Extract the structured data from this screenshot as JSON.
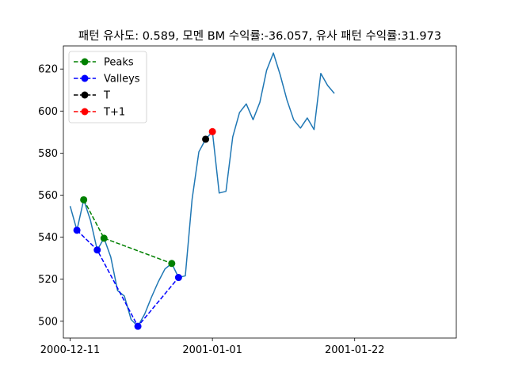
{
  "chart_data": {
    "type": "line",
    "title": "패턴 유사도: 0.589, 모멘 BM 수익률:-36.057, 유사 패턴 수익률:31.973",
    "xlabel": "",
    "ylabel": "",
    "xlim": [
      "2000-12-10",
      "2001-02-06"
    ],
    "ylim": [
      492,
      631
    ],
    "x_ticks": [
      "2000-12-11",
      "2001-01-01",
      "2001-01-22"
    ],
    "y_ticks": [
      500,
      520,
      540,
      560,
      580,
      600,
      620
    ],
    "legend_position": "top-left",
    "price": {
      "color": "#1f77b4",
      "points": [
        [
          "2000-12-11",
          554.8
        ],
        [
          "2000-12-12",
          543.3
        ],
        [
          "2000-12-13",
          557.8
        ],
        [
          "2000-12-14",
          548.0
        ],
        [
          "2000-12-15",
          533.9
        ],
        [
          "2000-12-16",
          539.5
        ],
        [
          "2000-12-17",
          530.5
        ],
        [
          "2000-12-18",
          514.6
        ],
        [
          "2000-12-19",
          512.0
        ],
        [
          "2000-12-20",
          500.8
        ],
        [
          "2000-12-21",
          497.6
        ],
        [
          "2000-12-22",
          503.4
        ],
        [
          "2000-12-23",
          511.4
        ],
        [
          "2000-12-24",
          518.7
        ],
        [
          "2000-12-25",
          524.9
        ],
        [
          "2000-12-26",
          527.5
        ],
        [
          "2000-12-27",
          520.8
        ],
        [
          "2000-12-28",
          521.6
        ],
        [
          "2000-12-29",
          558.0
        ],
        [
          "2000-12-30",
          580.6
        ],
        [
          "2000-12-31",
          586.6
        ],
        [
          "2001-01-01",
          590.2
        ],
        [
          "2001-01-02",
          561.0
        ],
        [
          "2001-01-03",
          561.8
        ],
        [
          "2001-01-04",
          587.7
        ],
        [
          "2001-01-05",
          599.3
        ],
        [
          "2001-01-06",
          603.4
        ],
        [
          "2001-01-07",
          595.9
        ],
        [
          "2001-01-08",
          604.1
        ],
        [
          "2001-01-09",
          619.4
        ],
        [
          "2001-01-10",
          627.6
        ],
        [
          "2001-01-11",
          617.3
        ],
        [
          "2001-01-12",
          605.3
        ],
        [
          "2001-01-13",
          595.8
        ],
        [
          "2001-01-14",
          591.9
        ],
        [
          "2001-01-15",
          596.7
        ],
        [
          "2001-01-16",
          591.2
        ],
        [
          "2001-01-17",
          617.9
        ],
        [
          "2001-01-18",
          612.2
        ],
        [
          "2001-01-19",
          608.4
        ]
      ]
    },
    "series": [
      {
        "name": "Peaks",
        "color": "#008000",
        "points": [
          [
            "2000-12-13",
            557.8
          ],
          [
            "2000-12-16",
            539.5
          ],
          [
            "2000-12-26",
            527.5
          ]
        ]
      },
      {
        "name": "Valleys",
        "color": "#0000ff",
        "points": [
          [
            "2000-12-12",
            543.3
          ],
          [
            "2000-12-15",
            533.9
          ],
          [
            "2000-12-21",
            497.6
          ],
          [
            "2000-12-27",
            520.8
          ]
        ]
      },
      {
        "name": "T",
        "color": "#000000",
        "points": [
          [
            "2000-12-31",
            586.6
          ]
        ]
      },
      {
        "name": "T+1",
        "color": "#ff0000",
        "points": [
          [
            "2001-01-01",
            590.2
          ]
        ]
      }
    ]
  }
}
